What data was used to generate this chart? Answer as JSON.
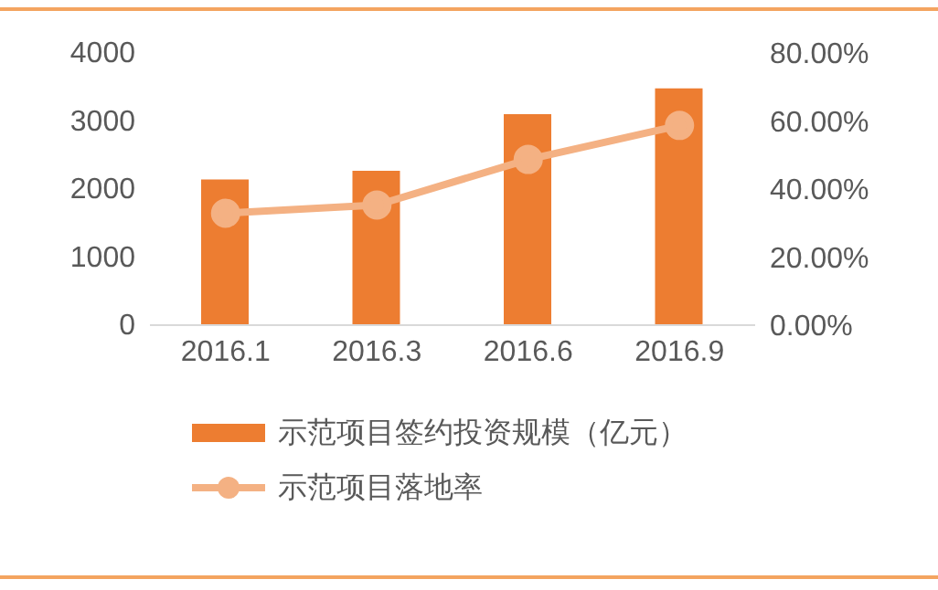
{
  "chart_data": {
    "type": "bar",
    "categories": [
      "2016.1",
      "2016.3",
      "2016.6",
      "2016.9"
    ],
    "series": [
      {
        "name": "示范项目签约投资规模（亿元）",
        "color": "#ed7d31",
        "values": [
          2140,
          2270,
          3100,
          3480
        ]
      },
      {
        "name": "示范项目落地率",
        "type": "line",
        "axis": "y2",
        "color": "#f4b183",
        "values": [
          32.9,
          35.3,
          48.7,
          58.7
        ]
      }
    ],
    "ylim": [
      0,
      4000
    ],
    "yticks": [
      0,
      1000,
      2000,
      3000,
      4000
    ],
    "y2lim": [
      0,
      80
    ],
    "y2ticks": [
      {
        "value": 0,
        "label": "0.00%"
      },
      {
        "value": 20,
        "label": "20.00%"
      },
      {
        "value": 40,
        "label": "40.00%"
      },
      {
        "value": 60,
        "label": "60.00%"
      },
      {
        "value": 80,
        "label": "80.00%"
      }
    ],
    "grid": false,
    "legend": "bottom",
    "marker": "circle",
    "line_style": "solid"
  }
}
